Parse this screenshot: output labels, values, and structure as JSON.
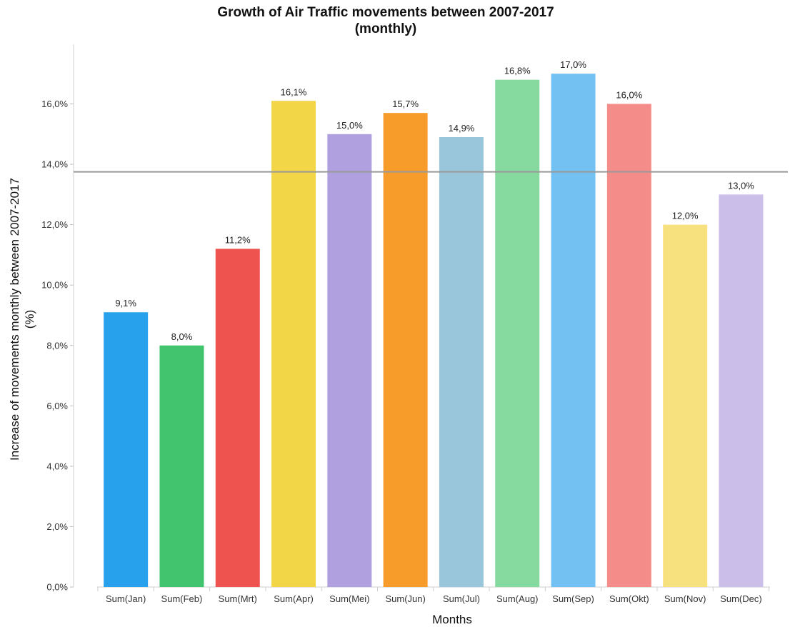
{
  "chart_data": {
    "type": "bar",
    "title": "Growth of Air Traffic movements between 2007-2017 (monthly)",
    "xlabel": "Months",
    "ylabel": "Increase of movements monthly between 2007-2017 (%)",
    "ylim": [
      0,
      18
    ],
    "yticks": [
      0,
      2,
      4,
      6,
      8,
      10,
      12,
      14,
      16
    ],
    "ytick_labels": [
      "0,0%",
      "2,0%",
      "4,0%",
      "6,0%",
      "8,0%",
      "10,0%",
      "12,0%",
      "14,0%",
      "16,0%"
    ],
    "categories": [
      "Sum(Jan)",
      "Sum(Feb)",
      "Sum(Mrt)",
      "Sum(Apr)",
      "Sum(Mei)",
      "Sum(Jun)",
      "Sum(Jul)",
      "Sum(Aug)",
      "Sum(Sep)",
      "Sum(Okt)",
      "Sum(Nov)",
      "Sum(Dec)"
    ],
    "values": [
      9.1,
      8.0,
      11.2,
      16.1,
      15.0,
      15.7,
      14.9,
      16.8,
      17.0,
      16.0,
      12.0,
      13.0
    ],
    "value_labels": [
      "9,1%",
      "8,0%",
      "11,2%",
      "16,1%",
      "15,0%",
      "15,7%",
      "14,9%",
      "16,8%",
      "17,0%",
      "16,0%",
      "12,0%",
      "13,0%"
    ],
    "colors": [
      "#27a1ec",
      "#42c46e",
      "#ef5350",
      "#f3d548",
      "#b0a0e0",
      "#f79c2a",
      "#9ac6db",
      "#86d99f",
      "#72c1f2",
      "#f48c8a",
      "#f7e17f",
      "#cbbfea"
    ],
    "reference_line": {
      "value": 13.75,
      "color": "#999999"
    },
    "grid": false,
    "legend": "none"
  }
}
